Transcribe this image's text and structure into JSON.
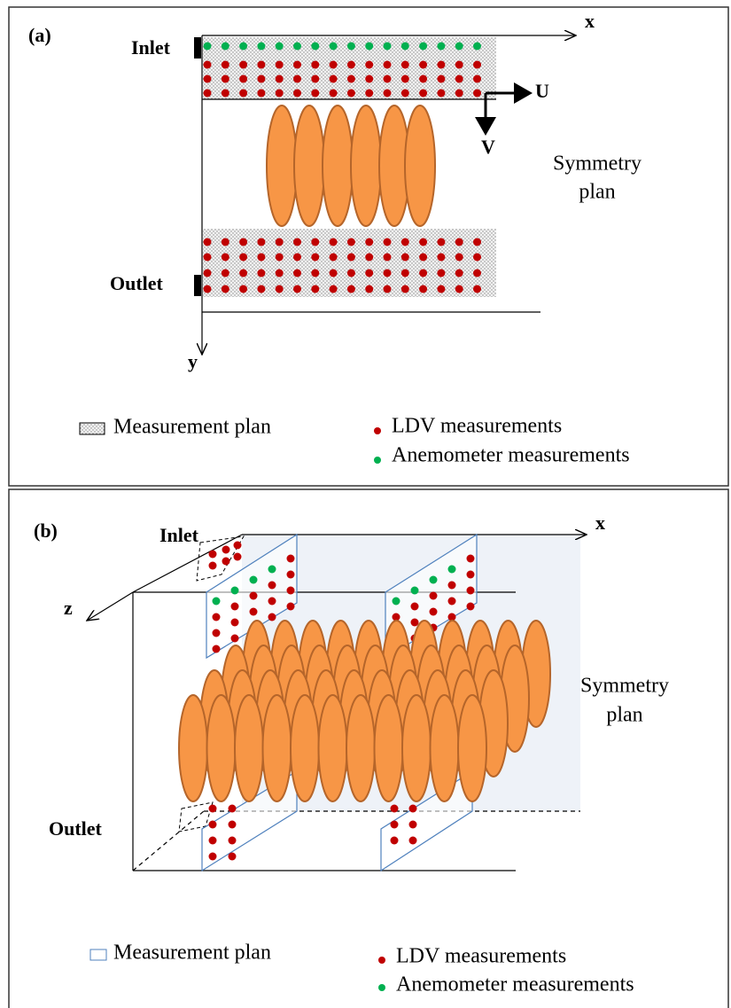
{
  "panels": [
    {
      "label": "(a)",
      "inlet": "Inlet",
      "outlet": "Outlet",
      "axis_x": "x",
      "axis_y": "y",
      "vector_u": "U",
      "vector_v": "V",
      "symmetry_label": [
        "Symmetry",
        "plan"
      ],
      "legend": [
        "Measurement plan",
        "LDV measurements",
        "Anemometer measurements"
      ]
    },
    {
      "label": "(b)",
      "inlet": "Inlet",
      "outlet": "Outlet",
      "axis_x": "x",
      "axis_z": "z",
      "symmetry_label": [
        "Symmetry",
        "plan"
      ],
      "legend": [
        "Measurement plan",
        "LDV measurements",
        "Anemometer measurements"
      ]
    }
  ]
}
